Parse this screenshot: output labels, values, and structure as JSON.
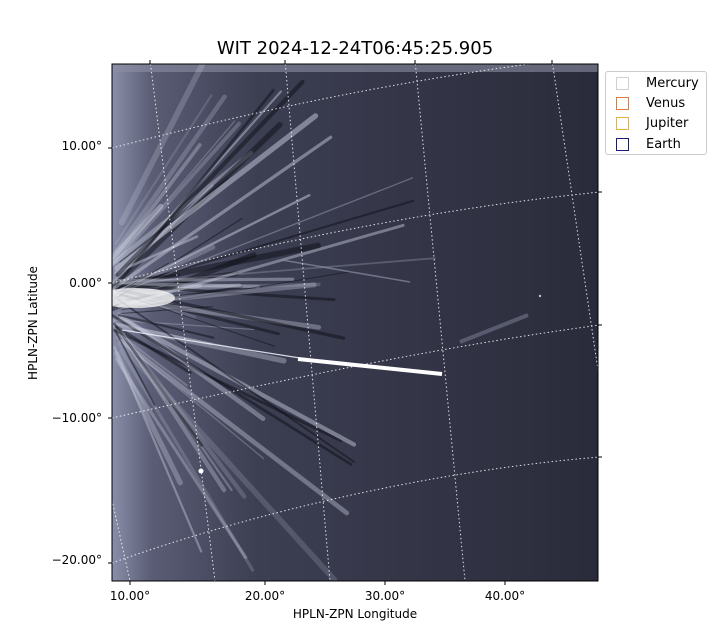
{
  "title": "WIT 2024-12-24T06:45:25.905",
  "xlabel": "HPLN-ZPN Longitude",
  "ylabel": "HPLN-ZPN Latitude",
  "yticks": [
    "10.00°",
    "0.00°",
    "−10.00°",
    "−20.00°"
  ],
  "xticks": [
    "10.00°",
    "20.00°",
    "30.00°",
    "40.00°"
  ],
  "legend": [
    {
      "label": "Mercury",
      "color": "#d0d0d0"
    },
    {
      "label": "Venus",
      "color": "#e07a3a"
    },
    {
      "label": "Jupiter",
      "color": "#e6b23a"
    },
    {
      "label": "Earth",
      "color": "#1a1a80"
    }
  ],
  "colors": {
    "background": "#2c2d3b",
    "streamer": "#d8dbe8",
    "grid": "#ffffff"
  }
}
